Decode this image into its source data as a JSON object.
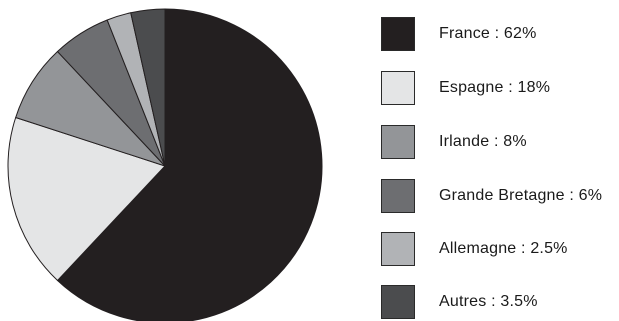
{
  "chart_data": {
    "type": "pie",
    "title": "",
    "legend_position": "right",
    "slices": [
      {
        "label": "France : 62%",
        "name": "France",
        "value": 62,
        "color": "#231f20"
      },
      {
        "label": "Espagne : 18%",
        "name": "Espagne",
        "value": 18,
        "color": "#e4e5e6"
      },
      {
        "label": "Irlande : 8%",
        "name": "Irlande",
        "value": 8,
        "color": "#939598"
      },
      {
        "label": "Grande Bretagne : 6%",
        "name": "Grande Bretagne",
        "value": 6,
        "color": "#6d6e71"
      },
      {
        "label": "Allemagne : 2.5%",
        "name": "Allemagne",
        "value": 2.5,
        "color": "#b1b3b6"
      },
      {
        "label": "Autres : 3.5%",
        "name": "Autres",
        "value": 3.5,
        "color": "#4b4c4e"
      }
    ]
  }
}
